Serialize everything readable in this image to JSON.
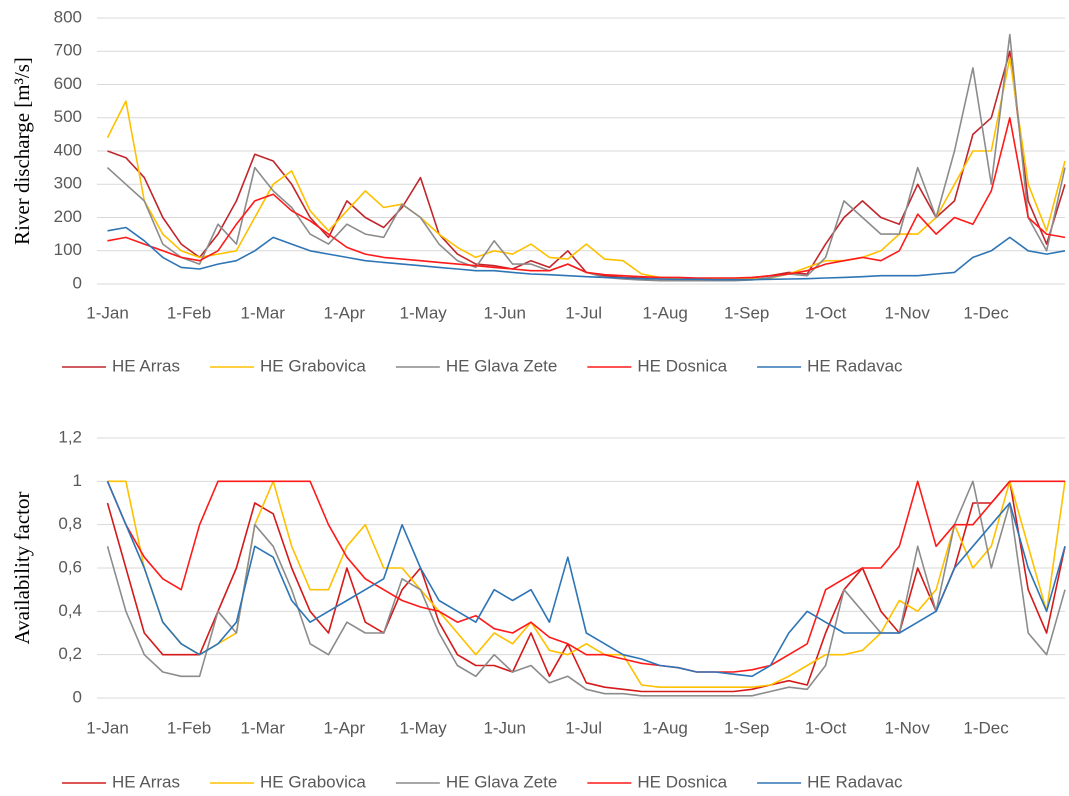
{
  "chart_data": [
    {
      "type": "line",
      "y_label": "River discharge [m³/s]",
      "x": [
        0,
        7,
        14,
        21,
        28,
        35,
        42,
        49,
        56,
        63,
        70,
        77,
        84,
        91,
        98,
        105,
        112,
        119,
        126,
        133,
        140,
        147,
        154,
        161,
        168,
        175,
        182,
        189,
        196,
        203,
        210,
        217,
        224,
        231,
        238,
        245,
        252,
        259,
        266,
        273,
        280,
        287,
        294,
        301,
        308,
        315,
        322,
        329,
        336,
        343,
        350,
        357,
        364
      ],
      "xlim": [
        -4,
        364
      ],
      "xticks": [
        {
          "value": 0,
          "label": "1-Jan"
        },
        {
          "value": 31,
          "label": "1-Feb"
        },
        {
          "value": 59,
          "label": "1-Mar"
        },
        {
          "value": 90,
          "label": "1-Apr"
        },
        {
          "value": 120,
          "label": "1-May"
        },
        {
          "value": 151,
          "label": "1-Jun"
        },
        {
          "value": 181,
          "label": "1-Jul"
        },
        {
          "value": 212,
          "label": "1-Aug"
        },
        {
          "value": 243,
          "label": "1-Sep"
        },
        {
          "value": 273,
          "label": "1-Oct"
        },
        {
          "value": 304,
          "label": "1-Nov"
        },
        {
          "value": 334,
          "label": "1-Dec"
        }
      ],
      "ylim": [
        0,
        800
      ],
      "yticks": [
        0,
        100,
        200,
        300,
        400,
        500,
        600,
        700,
        800
      ],
      "grid": true,
      "series": [
        {
          "name": "HE Arras",
          "color": "#c0272d",
          "values": [
            400,
            380,
            320,
            200,
            120,
            80,
            150,
            250,
            390,
            370,
            300,
            200,
            140,
            250,
            200,
            170,
            230,
            320,
            150,
            90,
            60,
            55,
            45,
            70,
            50,
            100,
            35,
            25,
            20,
            18,
            15,
            15,
            15,
            15,
            15,
            18,
            25,
            35,
            30,
            120,
            200,
            250,
            200,
            180,
            300,
            200,
            250,
            450,
            500,
            700,
            250,
            120,
            300
          ]
        },
        {
          "name": "HE Grabovica",
          "color": "#ffc000",
          "values": [
            440,
            550,
            250,
            150,
            100,
            80,
            90,
            100,
            200,
            300,
            340,
            220,
            160,
            220,
            280,
            230,
            240,
            200,
            150,
            110,
            80,
            100,
            90,
            120,
            80,
            75,
            120,
            75,
            70,
            30,
            20,
            18,
            15,
            15,
            15,
            15,
            18,
            30,
            50,
            70,
            70,
            80,
            100,
            150,
            150,
            200,
            300,
            400,
            400,
            680,
            300,
            160,
            370
          ]
        },
        {
          "name": "HE Glava Zete",
          "color": "#8c8c8c",
          "values": [
            350,
            300,
            250,
            120,
            80,
            60,
            180,
            120,
            350,
            280,
            230,
            150,
            120,
            180,
            150,
            140,
            240,
            200,
            120,
            70,
            50,
            130,
            60,
            60,
            40,
            60,
            35,
            20,
            15,
            12,
            10,
            10,
            10,
            10,
            10,
            12,
            20,
            30,
            25,
            80,
            250,
            200,
            150,
            150,
            350,
            200,
            400,
            650,
            300,
            750,
            200,
            100,
            350
          ]
        },
        {
          "name": "HE Dosnica",
          "color": "#ff1a1a",
          "values": [
            130,
            140,
            120,
            100,
            80,
            70,
            100,
            180,
            250,
            270,
            220,
            190,
            150,
            110,
            90,
            80,
            75,
            70,
            65,
            60,
            55,
            50,
            45,
            40,
            40,
            60,
            35,
            28,
            25,
            22,
            20,
            20,
            18,
            18,
            18,
            20,
            25,
            30,
            40,
            60,
            70,
            80,
            70,
            100,
            210,
            150,
            200,
            180,
            280,
            500,
            200,
            150,
            140
          ]
        },
        {
          "name": "HE Radavac",
          "color": "#2e75b6",
          "values": [
            160,
            170,
            130,
            80,
            50,
            45,
            60,
            70,
            100,
            140,
            120,
            100,
            90,
            80,
            70,
            65,
            60,
            55,
            50,
            45,
            40,
            40,
            35,
            30,
            28,
            25,
            22,
            20,
            18,
            16,
            15,
            14,
            14,
            13,
            13,
            13,
            14,
            15,
            16,
            18,
            20,
            22,
            25,
            25,
            25,
            30,
            35,
            80,
            100,
            140,
            100,
            90,
            100
          ]
        }
      ]
    },
    {
      "type": "line",
      "y_label": "Availability factor",
      "x": [
        0,
        7,
        14,
        21,
        28,
        35,
        42,
        49,
        56,
        63,
        70,
        77,
        84,
        91,
        98,
        105,
        112,
        119,
        126,
        133,
        140,
        147,
        154,
        161,
        168,
        175,
        182,
        189,
        196,
        203,
        210,
        217,
        224,
        231,
        238,
        245,
        252,
        259,
        266,
        273,
        280,
        287,
        294,
        301,
        308,
        315,
        322,
        329,
        336,
        343,
        350,
        357,
        364
      ],
      "xlim": [
        -4,
        364
      ],
      "xticks": [
        {
          "value": 0,
          "label": "1-Jan"
        },
        {
          "value": 31,
          "label": "1-Feb"
        },
        {
          "value": 59,
          "label": "1-Mar"
        },
        {
          "value": 90,
          "label": "1-Apr"
        },
        {
          "value": 120,
          "label": "1-May"
        },
        {
          "value": 151,
          "label": "1-Jun"
        },
        {
          "value": 181,
          "label": "1-Jul"
        },
        {
          "value": 212,
          "label": "1-Aug"
        },
        {
          "value": 243,
          "label": "1-Sep"
        },
        {
          "value": 273,
          "label": "1-Oct"
        },
        {
          "value": 304,
          "label": "1-Nov"
        },
        {
          "value": 334,
          "label": "1-Dec"
        }
      ],
      "ylim": [
        0,
        1.2
      ],
      "yticks": [
        0,
        {
          "value": 0.2,
          "label": "0,2"
        },
        {
          "value": 0.4,
          "label": "0,4"
        },
        {
          "value": 0.6,
          "label": "0,6"
        },
        {
          "value": 0.8,
          "label": "0,8"
        },
        1,
        {
          "value": 1.2,
          "label": "1,2"
        }
      ],
      "grid": true,
      "series": [
        {
          "name": "HE Arras",
          "color": "#d41a1a",
          "values": [
            0.9,
            0.6,
            0.3,
            0.2,
            0.2,
            0.2,
            0.4,
            0.6,
            0.9,
            0.85,
            0.6,
            0.4,
            0.3,
            0.6,
            0.35,
            0.3,
            0.5,
            0.6,
            0.35,
            0.2,
            0.15,
            0.15,
            0.12,
            0.3,
            0.1,
            0.25,
            0.07,
            0.05,
            0.04,
            0.03,
            0.03,
            0.03,
            0.03,
            0.03,
            0.03,
            0.04,
            0.06,
            0.08,
            0.06,
            0.3,
            0.5,
            0.6,
            0.4,
            0.3,
            0.6,
            0.4,
            0.6,
            0.9,
            0.9,
            1,
            0.5,
            0.3,
            0.7
          ]
        },
        {
          "name": "HE Grabovica",
          "color": "#ffc000",
          "values": [
            1,
            1,
            0.6,
            0.35,
            0.25,
            0.2,
            0.25,
            0.3,
            0.8,
            1,
            0.7,
            0.5,
            0.5,
            0.7,
            0.8,
            0.6,
            0.6,
            0.5,
            0.4,
            0.3,
            0.2,
            0.3,
            0.25,
            0.35,
            0.22,
            0.2,
            0.25,
            0.2,
            0.2,
            0.06,
            0.05,
            0.05,
            0.05,
            0.05,
            0.05,
            0.05,
            0.06,
            0.1,
            0.15,
            0.2,
            0.2,
            0.22,
            0.3,
            0.45,
            0.4,
            0.5,
            0.8,
            0.6,
            0.7,
            1,
            0.7,
            0.4,
            1
          ]
        },
        {
          "name": "HE Glava Zete",
          "color": "#8c8c8c",
          "values": [
            0.7,
            0.4,
            0.2,
            0.12,
            0.1,
            0.1,
            0.4,
            0.3,
            0.8,
            0.7,
            0.5,
            0.25,
            0.2,
            0.35,
            0.3,
            0.3,
            0.55,
            0.5,
            0.3,
            0.15,
            0.1,
            0.2,
            0.12,
            0.15,
            0.07,
            0.1,
            0.04,
            0.02,
            0.02,
            0.01,
            0.01,
            0.01,
            0.01,
            0.01,
            0.01,
            0.01,
            0.03,
            0.05,
            0.04,
            0.15,
            0.5,
            0.4,
            0.3,
            0.3,
            0.7,
            0.4,
            0.8,
            1,
            0.6,
            0.9,
            0.3,
            0.2,
            0.5
          ]
        },
        {
          "name": "HE Dosnica",
          "color": "#ff1a1a",
          "values": [
            1,
            0.8,
            0.65,
            0.55,
            0.5,
            0.8,
            1,
            1,
            1,
            1,
            1,
            1,
            0.8,
            0.65,
            0.55,
            0.5,
            0.45,
            0.42,
            0.4,
            0.35,
            0.38,
            0.32,
            0.3,
            0.35,
            0.28,
            0.25,
            0.2,
            0.2,
            0.18,
            0.16,
            0.15,
            0.14,
            0.12,
            0.12,
            0.12,
            0.13,
            0.15,
            0.2,
            0.25,
            0.5,
            0.55,
            0.6,
            0.6,
            0.7,
            1,
            0.7,
            0.8,
            0.8,
            0.9,
            1,
            1,
            1,
            1
          ]
        },
        {
          "name": "HE Radavac",
          "color": "#2e75b6",
          "values": [
            1,
            0.8,
            0.6,
            0.35,
            0.25,
            0.2,
            0.25,
            0.35,
            0.7,
            0.65,
            0.45,
            0.35,
            0.4,
            0.45,
            0.5,
            0.55,
            0.8,
            0.6,
            0.45,
            0.4,
            0.35,
            0.5,
            0.45,
            0.5,
            0.35,
            0.65,
            0.3,
            0.25,
            0.2,
            0.18,
            0.15,
            0.14,
            0.12,
            0.12,
            0.11,
            0.1,
            0.15,
            0.3,
            0.4,
            0.35,
            0.3,
            0.3,
            0.3,
            0.3,
            0.35,
            0.4,
            0.6,
            0.7,
            0.8,
            0.9,
            0.6,
            0.4,
            0.7
          ]
        }
      ]
    }
  ]
}
